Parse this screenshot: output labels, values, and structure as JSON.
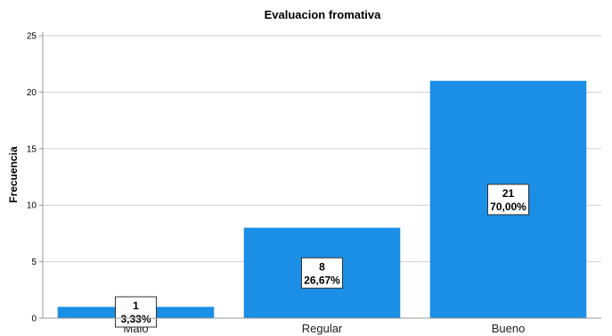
{
  "chart_data": {
    "type": "bar",
    "title": "Evaluacion fromativa",
    "xlabel": "",
    "ylabel": "Frecuencia",
    "categories": [
      "Malo",
      "Regular",
      "Bueno"
    ],
    "values": [
      1,
      8,
      21
    ],
    "percent_labels": [
      "3,33%",
      "26,67%",
      "70,00%"
    ],
    "ylim": [
      0,
      25
    ],
    "yticks": [
      0,
      5,
      10,
      15,
      20,
      25
    ],
    "grid": true,
    "bar_color": "#1b8ee6"
  }
}
